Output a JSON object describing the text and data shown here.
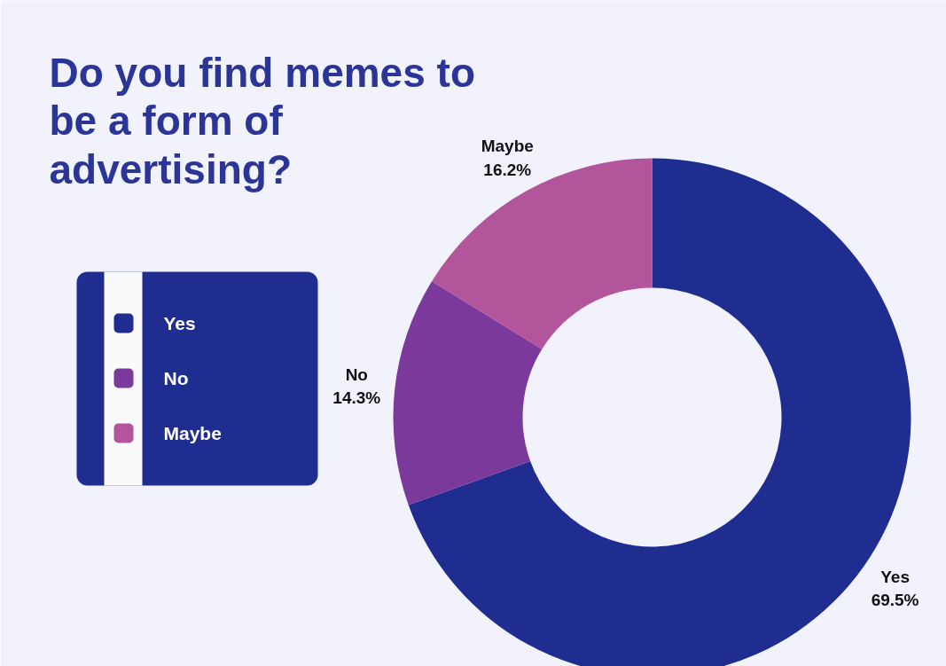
{
  "chart_data": {
    "type": "donut",
    "title": "Do you find memes to\nbe a form of\nadvertising?",
    "categories": [
      "Yes",
      "No",
      "Maybe"
    ],
    "values": [
      69.5,
      14.3,
      16.2
    ],
    "colors": [
      "#1f2d91",
      "#7b3a9b",
      "#b3559b"
    ],
    "value_labels": [
      "69.5%",
      "14.3%",
      "16.2%"
    ],
    "legend": "left"
  }
}
